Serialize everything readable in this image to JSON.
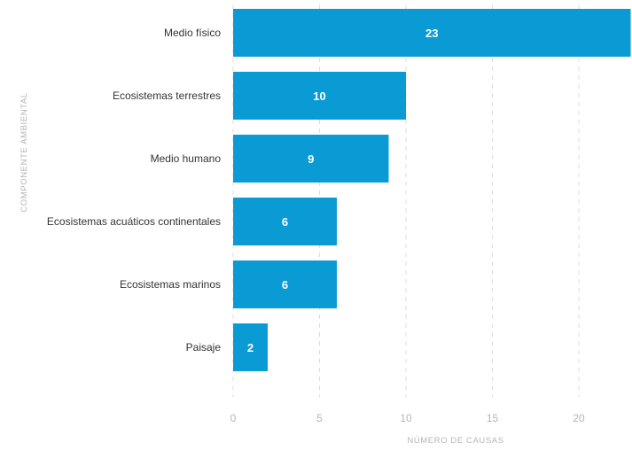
{
  "chart_data": {
    "type": "bar",
    "orientation": "horizontal",
    "categories": [
      "Medio físico",
      "Ecosistemas terrestres",
      "Medio humano",
      "Ecosistemas acuáticos continentales",
      "Ecosistemas marinos",
      "Paisaje"
    ],
    "values": [
      23,
      10,
      9,
      6,
      6,
      2
    ],
    "xlabel": "NÚMERO DE CAUSAS",
    "ylabel": "COMPONENTE AMBIENTAL",
    "xticks": [
      "0",
      "5",
      "10",
      "15",
      "20"
    ],
    "xlim": [
      0,
      23
    ],
    "bar_color": "#0b9bd4",
    "grid": true
  }
}
